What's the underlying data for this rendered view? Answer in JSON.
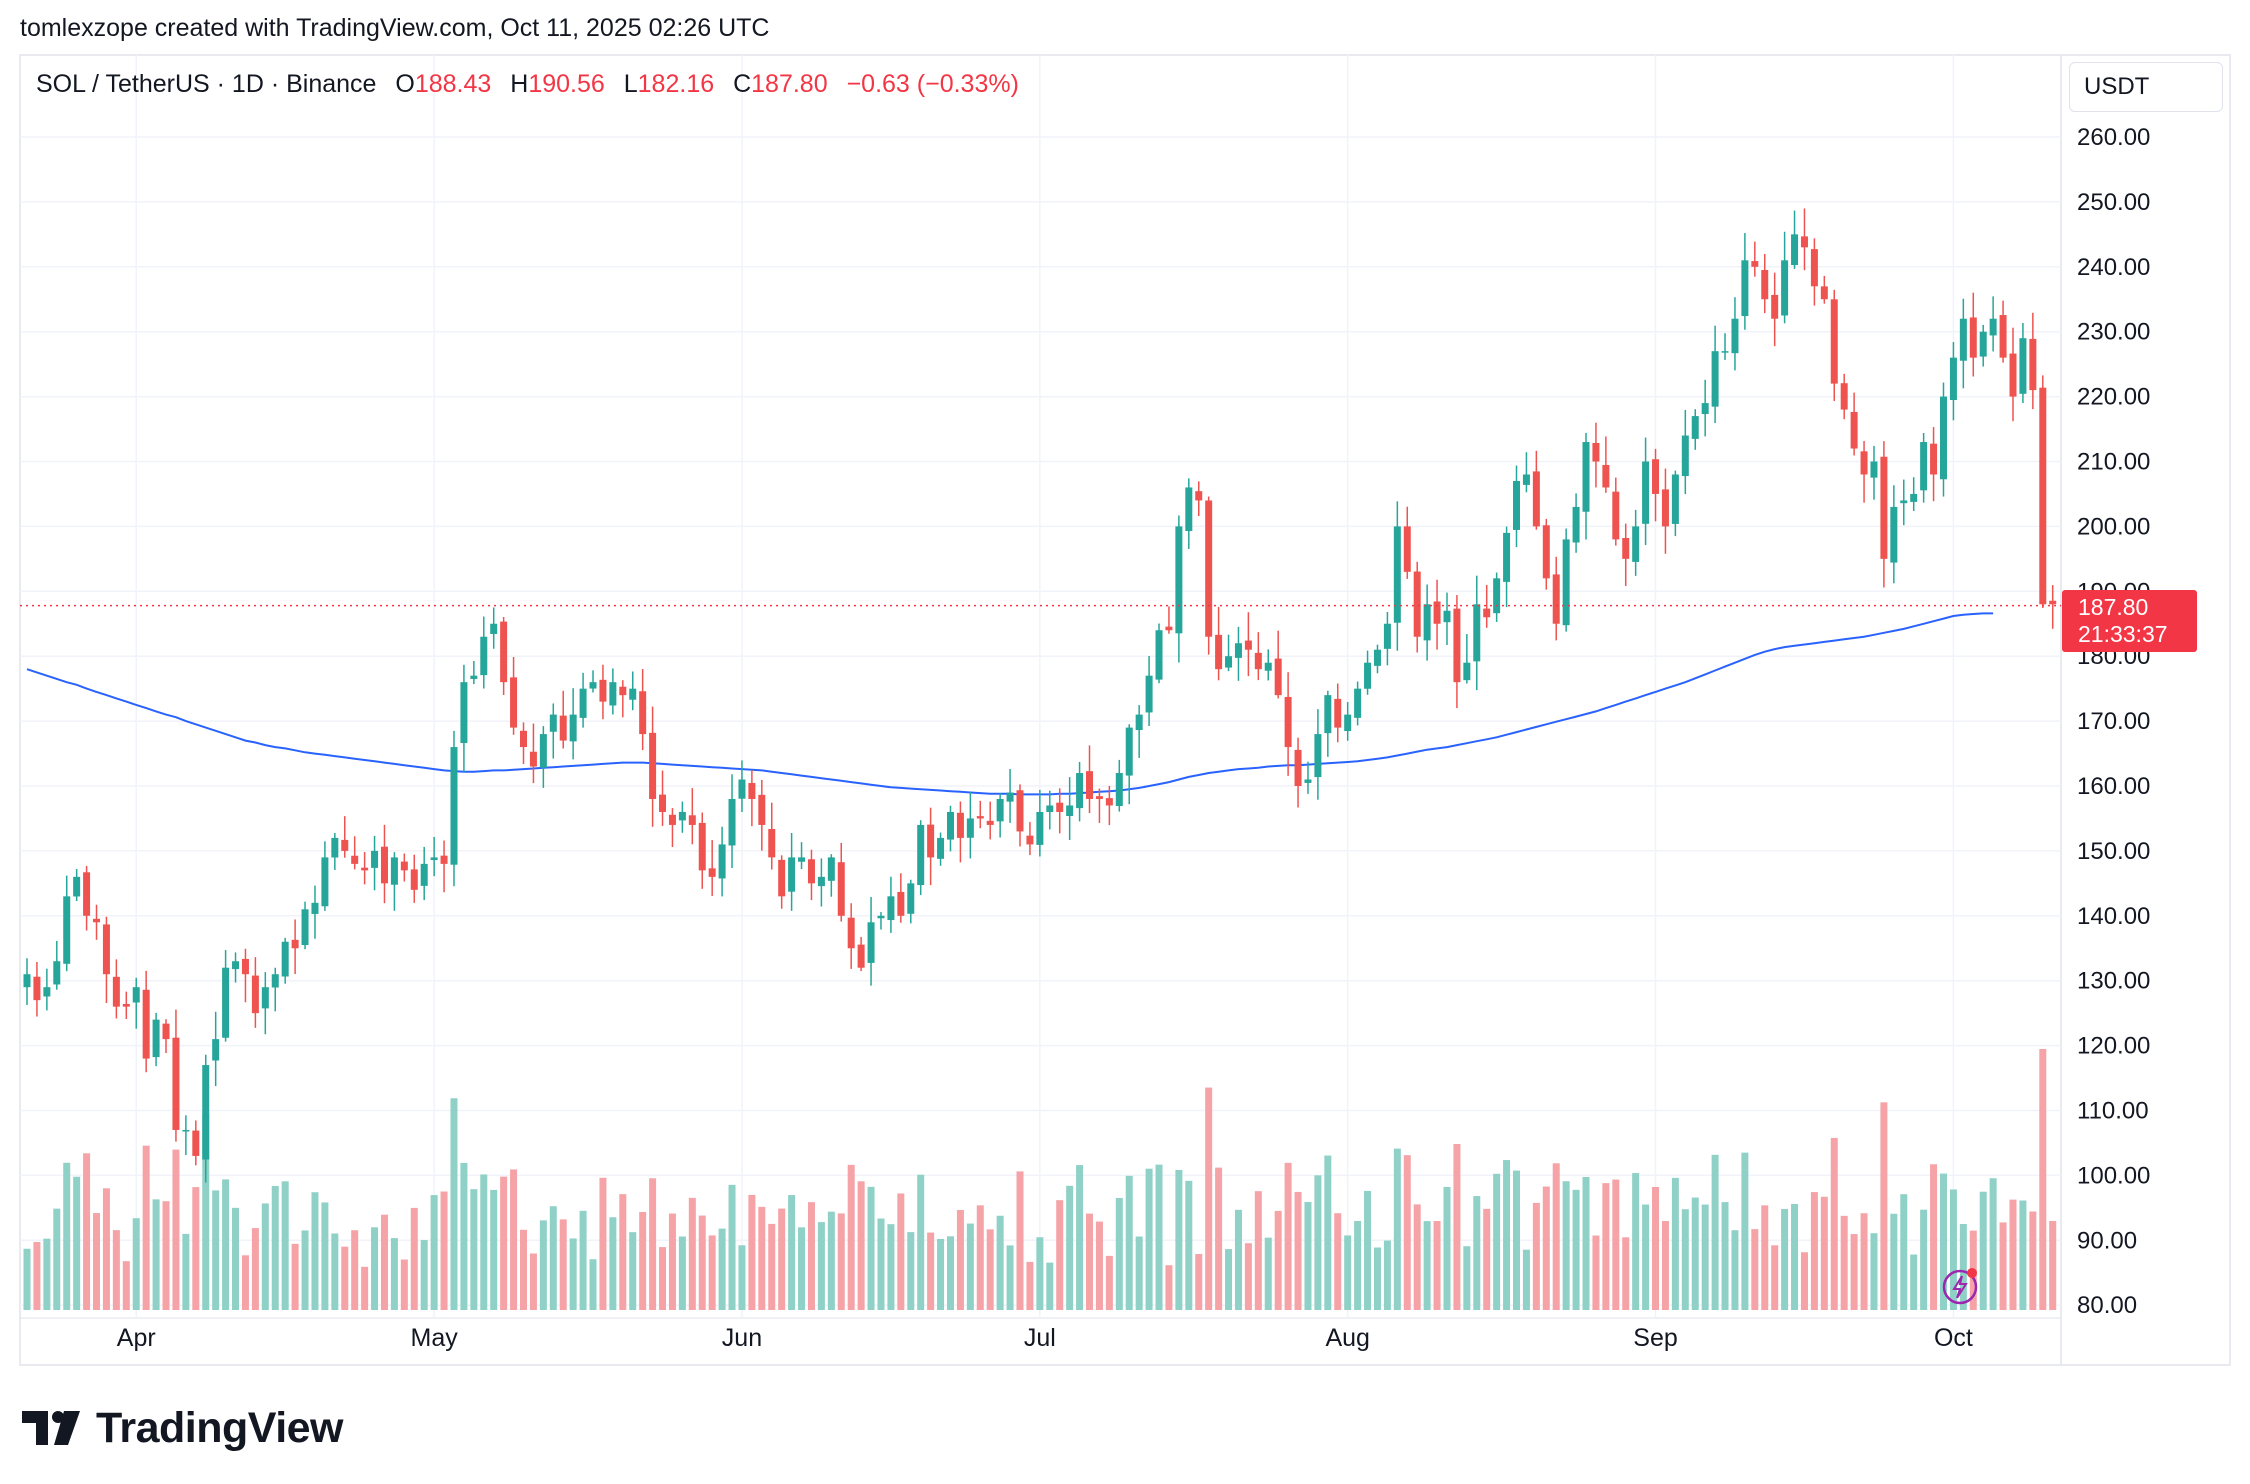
{
  "credit": "tomlexzope created with TradingView.com, Oct 11, 2025 02:26 UTC",
  "legend": {
    "symbol": "SOL / TetherUS · 1D · Binance",
    "o_label": "O",
    "o_value": "188.43",
    "h_label": "H",
    "h_value": "190.56",
    "l_label": "L",
    "l_value": "182.16",
    "c_label": "C",
    "c_value": "187.80",
    "change": "−0.63 (−0.33%)"
  },
  "currency": "USDT",
  "last_price": {
    "value": "187.80",
    "countdown": "21:33:37"
  },
  "brand": "TradingView",
  "colors": {
    "up": "#26a69a",
    "down": "#ef5350",
    "ma": "#2962ff",
    "up_vol": "#8fd1c6",
    "down_vol": "#f5a3a7"
  },
  "chart_data": {
    "type": "candlestick",
    "title": "SOL / TetherUS · 1D · Binance",
    "y_axis_ticks": [
      "260.00",
      "250.00",
      "240.00",
      "230.00",
      "220.00",
      "210.00",
      "200.00",
      "190.00",
      "180.00",
      "170.00",
      "160.00",
      "150.00",
      "140.00",
      "130.00",
      "120.00",
      "110.00",
      "100.00",
      "90.00",
      "80.00"
    ],
    "ylim": [
      80,
      265
    ],
    "x_axis_ticks": [
      {
        "label": "Apr",
        "day": 11
      },
      {
        "label": "May",
        "day": 41
      },
      {
        "label": "Jun",
        "day": 72
      },
      {
        "label": "Jul",
        "day": 102
      },
      {
        "label": "Aug",
        "day": 133
      },
      {
        "label": "Sep",
        "day": 164
      },
      {
        "label": "Oct",
        "day": 194
      }
    ],
    "start_date": "2025-03-21",
    "closes": [
      131,
      127,
      129,
      133,
      143,
      146,
      140,
      139,
      131,
      126,
      126,
      129,
      118,
      124,
      121,
      107,
      107,
      103,
      117,
      121,
      132,
      133,
      131,
      125,
      129,
      131,
      136,
      135,
      141,
      142,
      149,
      152,
      150,
      148,
      147,
      150,
      145,
      149,
      147,
      144,
      148,
      149,
      148,
      166,
      176,
      177,
      183,
      185,
      176,
      169,
      166,
      163,
      168,
      171,
      167,
      171,
      175,
      176,
      173,
      176,
      174,
      175,
      168,
      158,
      156,
      154,
      156,
      154,
      147,
      146,
      151,
      158,
      161,
      158,
      154,
      149,
      143,
      149,
      149,
      145,
      146,
      149,
      140,
      135,
      132,
      139,
      140,
      143,
      140,
      145,
      154,
      149,
      152,
      156,
      152,
      155,
      155,
      154,
      158,
      159,
      153,
      151,
      156,
      157,
      156,
      157,
      162,
      158,
      158,
      157,
      162,
      169,
      171,
      177,
      184,
      184,
      200,
      206,
      204,
      183,
      178,
      180,
      182,
      181,
      178,
      179,
      174,
      166,
      160,
      161,
      168,
      174,
      169,
      171,
      175,
      179,
      181,
      185,
      200,
      193,
      183,
      188,
      185,
      187,
      176,
      179,
      188,
      186,
      192,
      199,
      207,
      208,
      200,
      192,
      185,
      198,
      203,
      213,
      210,
      206,
      198,
      195,
      200,
      210,
      205,
      200,
      208,
      214,
      217,
      219,
      227,
      227,
      232,
      241,
      240,
      235,
      232,
      241,
      245,
      243,
      237,
      235,
      222,
      218,
      212,
      208,
      210,
      195,
      203,
      204,
      205,
      213,
      208,
      220,
      226,
      232,
      226,
      230,
      232,
      226,
      220,
      229,
      221,
      188,
      188
    ],
    "ma_values": [
      178,
      177.5,
      177,
      176.5,
      176,
      175.6,
      175,
      174.5,
      174,
      173.5,
      173,
      172.5,
      172,
      171.5,
      171,
      170.6,
      170,
      169.5,
      169,
      168.5,
      168,
      167.5,
      167,
      166.7,
      166.3,
      166,
      165.8,
      165.5,
      165.2,
      165,
      164.8,
      164.6,
      164.4,
      164.2,
      164,
      163.8,
      163.6,
      163.4,
      163.2,
      163,
      162.8,
      162.6,
      162.4,
      162.3,
      162.2,
      162.2,
      162.3,
      162.4,
      162.4,
      162.5,
      162.6,
      162.7,
      162.8,
      162.9,
      163,
      163.1,
      163.2,
      163.3,
      163.4,
      163.5,
      163.6,
      163.6,
      163.6,
      163.5,
      163.4,
      163.3,
      163.2,
      163.1,
      163,
      162.9,
      162.8,
      162.7,
      162.6,
      162.5,
      162.4,
      162.2,
      162,
      161.8,
      161.6,
      161.4,
      161.2,
      161,
      160.8,
      160.6,
      160.4,
      160.2,
      160,
      159.8,
      159.7,
      159.6,
      159.5,
      159.4,
      159.3,
      159.2,
      159.1,
      159,
      158.9,
      158.8,
      158.8,
      158.8,
      158.7,
      158.7,
      158.7,
      158.7,
      158.8,
      158.8,
      158.9,
      159,
      159.1,
      159.2,
      159.3,
      159.5,
      159.7,
      160,
      160.3,
      160.6,
      161,
      161.4,
      161.7,
      162,
      162.2,
      162.4,
      162.6,
      162.7,
      162.8,
      163,
      163.1,
      163.2,
      163.2,
      163.3,
      163.4,
      163.5,
      163.6,
      163.7,
      163.8,
      164,
      164.2,
      164.4,
      164.7,
      165,
      165.3,
      165.6,
      165.8,
      166,
      166.3,
      166.6,
      166.9,
      167.2,
      167.5,
      167.9,
      168.3,
      168.7,
      169.1,
      169.5,
      169.9,
      170.3,
      170.7,
      171.1,
      171.5,
      172,
      172.5,
      173,
      173.5,
      174,
      174.5,
      175,
      175.5,
      176,
      176.6,
      177.2,
      177.8,
      178.4,
      179,
      179.6,
      180.2,
      180.7,
      181.1,
      181.4,
      181.6,
      181.8,
      182,
      182.2,
      182.4,
      182.6,
      182.8,
      183,
      183.3,
      183.6,
      183.9,
      184.2,
      184.6,
      185,
      185.4,
      185.8,
      186.2,
      186.4,
      186.5,
      186.6,
      186.6
    ],
    "volume_axis_note": "relative volume bars at bottom"
  }
}
